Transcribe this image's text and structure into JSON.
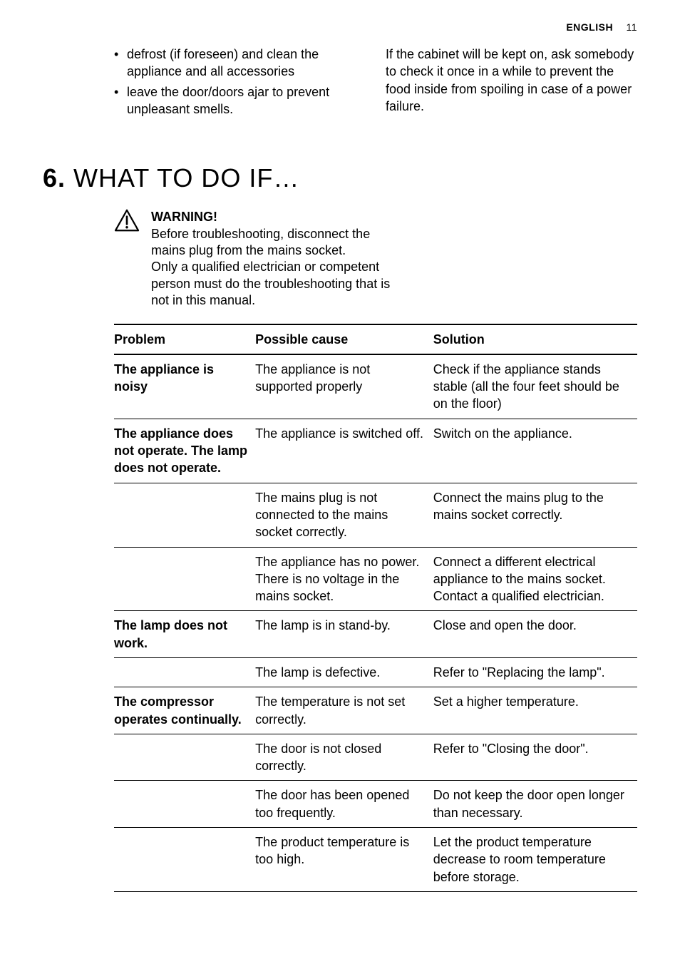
{
  "header": {
    "language": "ENGLISH",
    "page_number": "11"
  },
  "top": {
    "left_bullets": [
      "defrost (if foreseen) and clean the appliance and all accessories",
      "leave the door/doors ajar to prevent unpleasant smells."
    ],
    "right_paragraph": "If the cabinet will be kept on, ask somebody to check it once in a while to prevent the food inside from spoiling in case of a power failure."
  },
  "section": {
    "number": "6.",
    "title": "WHAT TO DO IF…"
  },
  "warning": {
    "label": "WARNING!",
    "line1": "Before troubleshooting, disconnect the mains plug from the mains socket.",
    "line2": "Only a qualified electrician or competent person must do the troubleshooting that is not in this manual."
  },
  "table": {
    "headers": {
      "problem": "Problem",
      "cause": "Possible cause",
      "solution": "Solution"
    },
    "rows": [
      {
        "problem": "The appliance is noisy",
        "cause": "The appliance is not supported properly",
        "solution": "Check if the appliance stands stable (all the four feet should be on the floor)"
      },
      {
        "problem": "The appliance does not operate. The lamp does not operate.",
        "cause": "The appliance is switched off.",
        "solution": "Switch on the appliance."
      },
      {
        "problem": "",
        "cause": "The mains plug is not connected to the mains socket correctly.",
        "solution": "Connect the mains plug to the mains socket correctly."
      },
      {
        "problem": "",
        "cause": "The appliance has no power. There is no voltage in the mains socket.",
        "solution": "Connect a different electrical appliance to the mains socket.\nContact a qualified electrician."
      },
      {
        "problem": "The lamp does not work.",
        "cause": "The lamp is in stand-by.",
        "solution": "Close and open the door."
      },
      {
        "problem": "",
        "cause": "The lamp is defective.",
        "solution": "Refer to \"Replacing the lamp\"."
      },
      {
        "problem": "The compressor operates continually.",
        "cause": "The temperature is not set correctly.",
        "solution": "Set a higher temperature."
      },
      {
        "problem": "",
        "cause": "The door is not closed correctly.",
        "solution": "Refer to \"Closing the door\"."
      },
      {
        "problem": "",
        "cause": "The door has been opened too frequently.",
        "solution": "Do not keep the door open longer than necessary."
      },
      {
        "problem": "",
        "cause": "The product temperature is too high.",
        "solution": "Let the product temperature decrease to room temperature before storage."
      }
    ]
  }
}
